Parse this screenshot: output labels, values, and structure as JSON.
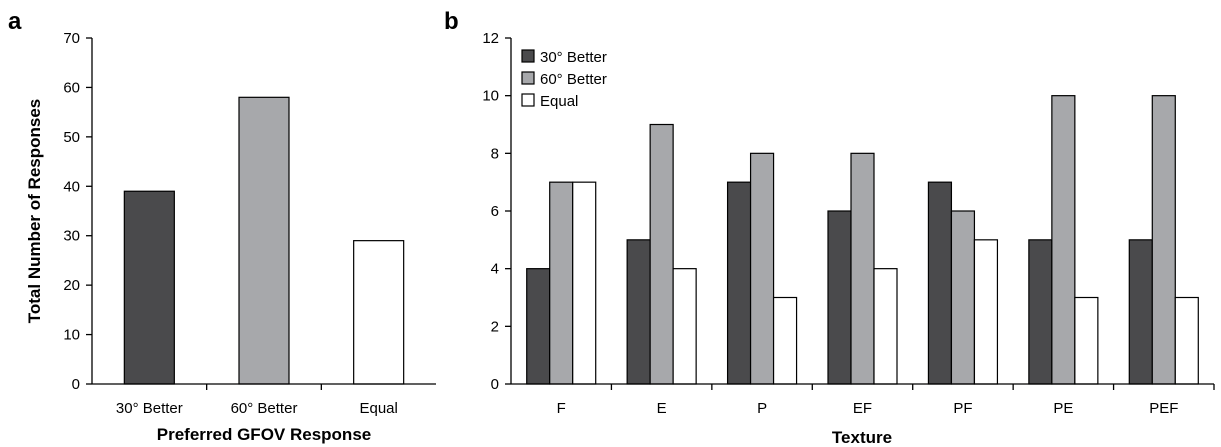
{
  "colors": {
    "series_30": "#4a4a4c",
    "series_60": "#a7a8ab",
    "series_equal": "#ffffff",
    "outline": "#000000"
  },
  "chart_data": [
    {
      "panel": "a",
      "type": "bar",
      "categories": [
        "30° Better",
        "60° Better",
        "Equal"
      ],
      "values": [
        39,
        58,
        29
      ],
      "xlabel": "Preferred GFOV Response",
      "ylabel": "Total Number of Responses",
      "ylim": [
        0,
        70
      ],
      "yticks": [
        "0",
        "10",
        "20",
        "30",
        "40",
        "50",
        "60",
        "70"
      ],
      "grid": false
    },
    {
      "panel": "b",
      "type": "bar",
      "categories": [
        "F",
        "E",
        "P",
        "EF",
        "PF",
        "PE",
        "PEF"
      ],
      "series": [
        {
          "name": "30° Better",
          "values": [
            4,
            5,
            7,
            6,
            7,
            5,
            5
          ]
        },
        {
          "name": "60° Better",
          "values": [
            7,
            9,
            8,
            8,
            6,
            10,
            10
          ]
        },
        {
          "name": "Equal",
          "values": [
            7,
            4,
            3,
            4,
            5,
            3,
            3
          ]
        }
      ],
      "xlabel": "Texture",
      "ylabel": "",
      "ylim": [
        0,
        12
      ],
      "yticks": [
        "0",
        "2",
        "4",
        "6",
        "8",
        "10",
        "12"
      ],
      "legend_position": "top-left",
      "grid": false
    }
  ]
}
